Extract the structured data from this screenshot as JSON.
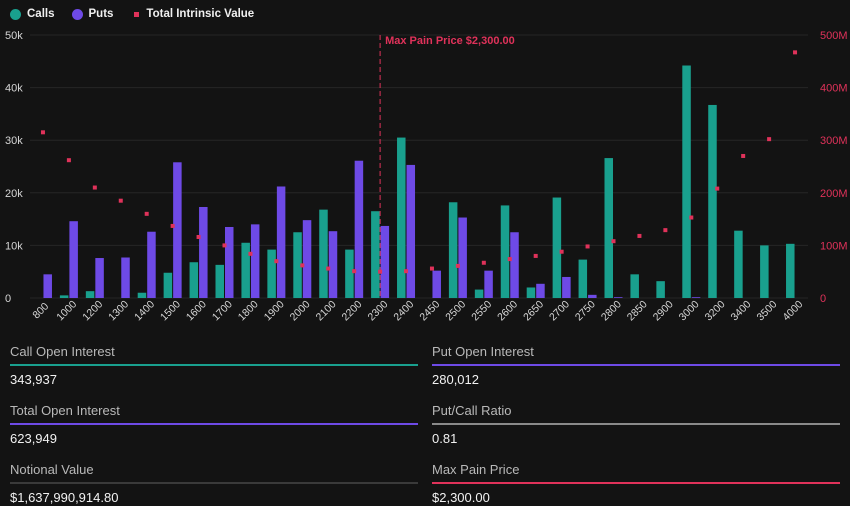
{
  "legend": {
    "calls": "Calls",
    "puts": "Puts",
    "intrinsic": "Total Intrinsic Value"
  },
  "colors": {
    "calls": "#19a08e",
    "puts": "#6e4ae6",
    "intrinsic": "#e0325a",
    "grid": "#262626",
    "neutral": "#8a8a8a"
  },
  "chart_data": {
    "type": "bar",
    "title": "",
    "xlabel": "",
    "ylabel": "",
    "ylim": [
      0,
      50000
    ],
    "y2lim": [
      0,
      500000000
    ],
    "y_ticks": [
      "0",
      "10k",
      "20k",
      "30k",
      "40k",
      "50k"
    ],
    "y2_ticks": [
      "0",
      "100M",
      "200M",
      "300M",
      "400M",
      "500M"
    ],
    "grid": true,
    "legend_position": "top-left",
    "categories": [
      "800",
      "1000",
      "1200",
      "1300",
      "1400",
      "1500",
      "1600",
      "1700",
      "1800",
      "1900",
      "2000",
      "2100",
      "2200",
      "2300",
      "2400",
      "2450",
      "2500",
      "2550",
      "2600",
      "2650",
      "2700",
      "2750",
      "2800",
      "2850",
      "2900",
      "3000",
      "3200",
      "3400",
      "3500",
      "4000"
    ],
    "series": [
      {
        "name": "Calls",
        "type": "bar",
        "axis": "left",
        "values": [
          0,
          500,
          1300,
          0,
          1000,
          4800,
          6800,
          6300,
          10500,
          9200,
          12500,
          16800,
          9200,
          16500,
          30500,
          0,
          18200,
          1600,
          17600,
          2000,
          19100,
          7300,
          26600,
          4500,
          3200,
          44200,
          36700,
          12800,
          10000,
          10300
        ]
      },
      {
        "name": "Puts",
        "type": "bar",
        "axis": "left",
        "values": [
          4500,
          14600,
          7600,
          7700,
          12600,
          25800,
          17300,
          13500,
          14000,
          21200,
          14800,
          12700,
          26100,
          13700,
          25300,
          5200,
          15300,
          5200,
          12500,
          2700,
          4000,
          600,
          150,
          0,
          0,
          150,
          0,
          0,
          0,
          0
        ]
      },
      {
        "name": "Total Intrinsic Value",
        "type": "scatter",
        "axis": "right",
        "values": [
          315000000,
          262000000,
          210000000,
          185000000,
          160000000,
          137000000,
          116000000,
          100000000,
          84000000,
          70000000,
          62000000,
          56000000,
          51000000,
          50000000,
          51000000,
          56000000,
          61000000,
          67000000,
          74000000,
          80000000,
          88000000,
          98000000,
          108000000,
          118000000,
          129000000,
          153000000,
          208000000,
          270000000,
          302000000,
          467000000
        ]
      }
    ],
    "annotations": [
      {
        "x": "2300",
        "text": "Max Pain Price $2,300.00"
      }
    ]
  },
  "stats": {
    "call_oi": {
      "label": "Call Open Interest",
      "value": "343,937"
    },
    "put_oi": {
      "label": "Put Open Interest",
      "value": "280,012"
    },
    "total_oi": {
      "label": "Total Open Interest",
      "value": "623,949"
    },
    "pc_ratio": {
      "label": "Put/Call Ratio",
      "value": "0.81"
    },
    "notional": {
      "label": "Notional Value",
      "value": "$1,637,990,914.80"
    },
    "max_pain": {
      "label": "Max Pain Price",
      "value": "$2,300.00"
    }
  }
}
